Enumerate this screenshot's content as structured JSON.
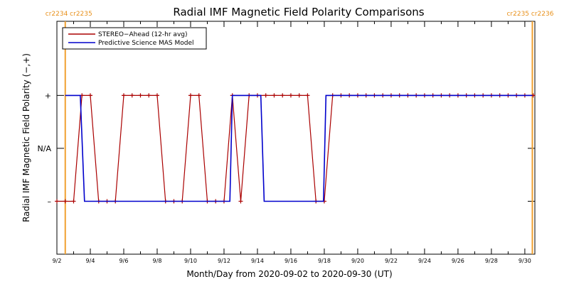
{
  "chart_data": {
    "type": "line",
    "title": "Radial IMF Magnetic Field Polarity Comparisons",
    "xlabel": "Month/Day from 2020-09-02 to 2020-09-30 (UT)",
    "ylabel": "Radial IMF Magnetic Field Polarity (−,+)",
    "xlim": [
      0,
      28.6
    ],
    "ylim": [
      -2,
      2.4
    ],
    "x_ticks": [
      {
        "x": 0,
        "label": "9/2"
      },
      {
        "x": 2,
        "label": "9/4"
      },
      {
        "x": 4,
        "label": "9/6"
      },
      {
        "x": 6,
        "label": "9/8"
      },
      {
        "x": 8,
        "label": "9/10"
      },
      {
        "x": 10,
        "label": "9/12"
      },
      {
        "x": 12,
        "label": "9/14"
      },
      {
        "x": 14,
        "label": "9/16"
      },
      {
        "x": 16,
        "label": "9/18"
      },
      {
        "x": 18,
        "label": "9/20"
      },
      {
        "x": 20,
        "label": "9/22"
      },
      {
        "x": 22,
        "label": "9/24"
      },
      {
        "x": 24,
        "label": "9/26"
      },
      {
        "x": 26,
        "label": "9/28"
      },
      {
        "x": 28,
        "label": "9/30"
      }
    ],
    "y_ticks": [
      {
        "y": 1,
        "label": "+"
      },
      {
        "y": 0,
        "label": "N/A"
      },
      {
        "y": -1,
        "label": "–"
      }
    ],
    "carrington_markers": [
      {
        "x": 0.5,
        "label": "cr2234 cr2235",
        "anchor": "right"
      },
      {
        "x": 28.45,
        "label": "cr2235 cr2236",
        "anchor": "left"
      }
    ],
    "legend_position": "top-left",
    "series": [
      {
        "name": "STEREO−Ahead (12-hr avg)",
        "color": "#aa0000",
        "markers": true,
        "x": [
          0.0,
          0.5,
          1.0,
          1.5,
          2.0,
          2.5,
          3.0,
          3.5,
          4.0,
          4.5,
          5.0,
          5.5,
          6.0,
          6.5,
          7.0,
          7.5,
          8.0,
          8.5,
          9.0,
          9.5,
          10.0,
          10.5,
          11.0,
          11.5,
          12.0,
          12.5,
          13.0,
          13.5,
          14.0,
          14.5,
          15.0,
          15.5,
          16.0,
          16.5,
          17.0,
          17.5,
          18.0,
          18.5,
          19.0,
          19.5,
          20.0,
          20.5,
          21.0,
          21.5,
          22.0,
          22.5,
          23.0,
          23.5,
          24.0,
          24.5,
          25.0,
          25.5,
          26.0,
          26.5,
          27.0,
          27.5,
          28.0,
          28.5
        ],
        "y": [
          -1,
          -1,
          -1,
          1,
          1,
          -1,
          -1,
          -1,
          1,
          1,
          1,
          1,
          1,
          -1,
          -1,
          -1,
          1,
          1,
          -1,
          -1,
          -1,
          1,
          -1,
          1,
          1,
          1,
          1,
          1,
          1,
          1,
          1,
          -1,
          -1,
          1,
          1,
          1,
          1,
          1,
          1,
          1,
          1,
          1,
          1,
          1,
          1,
          1,
          1,
          1,
          1,
          1,
          1,
          1,
          1,
          1,
          1,
          1,
          1,
          1
        ]
      },
      {
        "name": "Predictive Science MAS Model",
        "color": "#0000cc",
        "markers": false,
        "x": [
          0.5,
          1.4,
          1.65,
          10.35,
          10.5,
          12.2,
          12.4,
          15.95,
          16.1,
          28.45
        ],
        "y": [
          1,
          1,
          -1,
          -1,
          1,
          1,
          -1,
          -1,
          1,
          1
        ]
      }
    ]
  }
}
